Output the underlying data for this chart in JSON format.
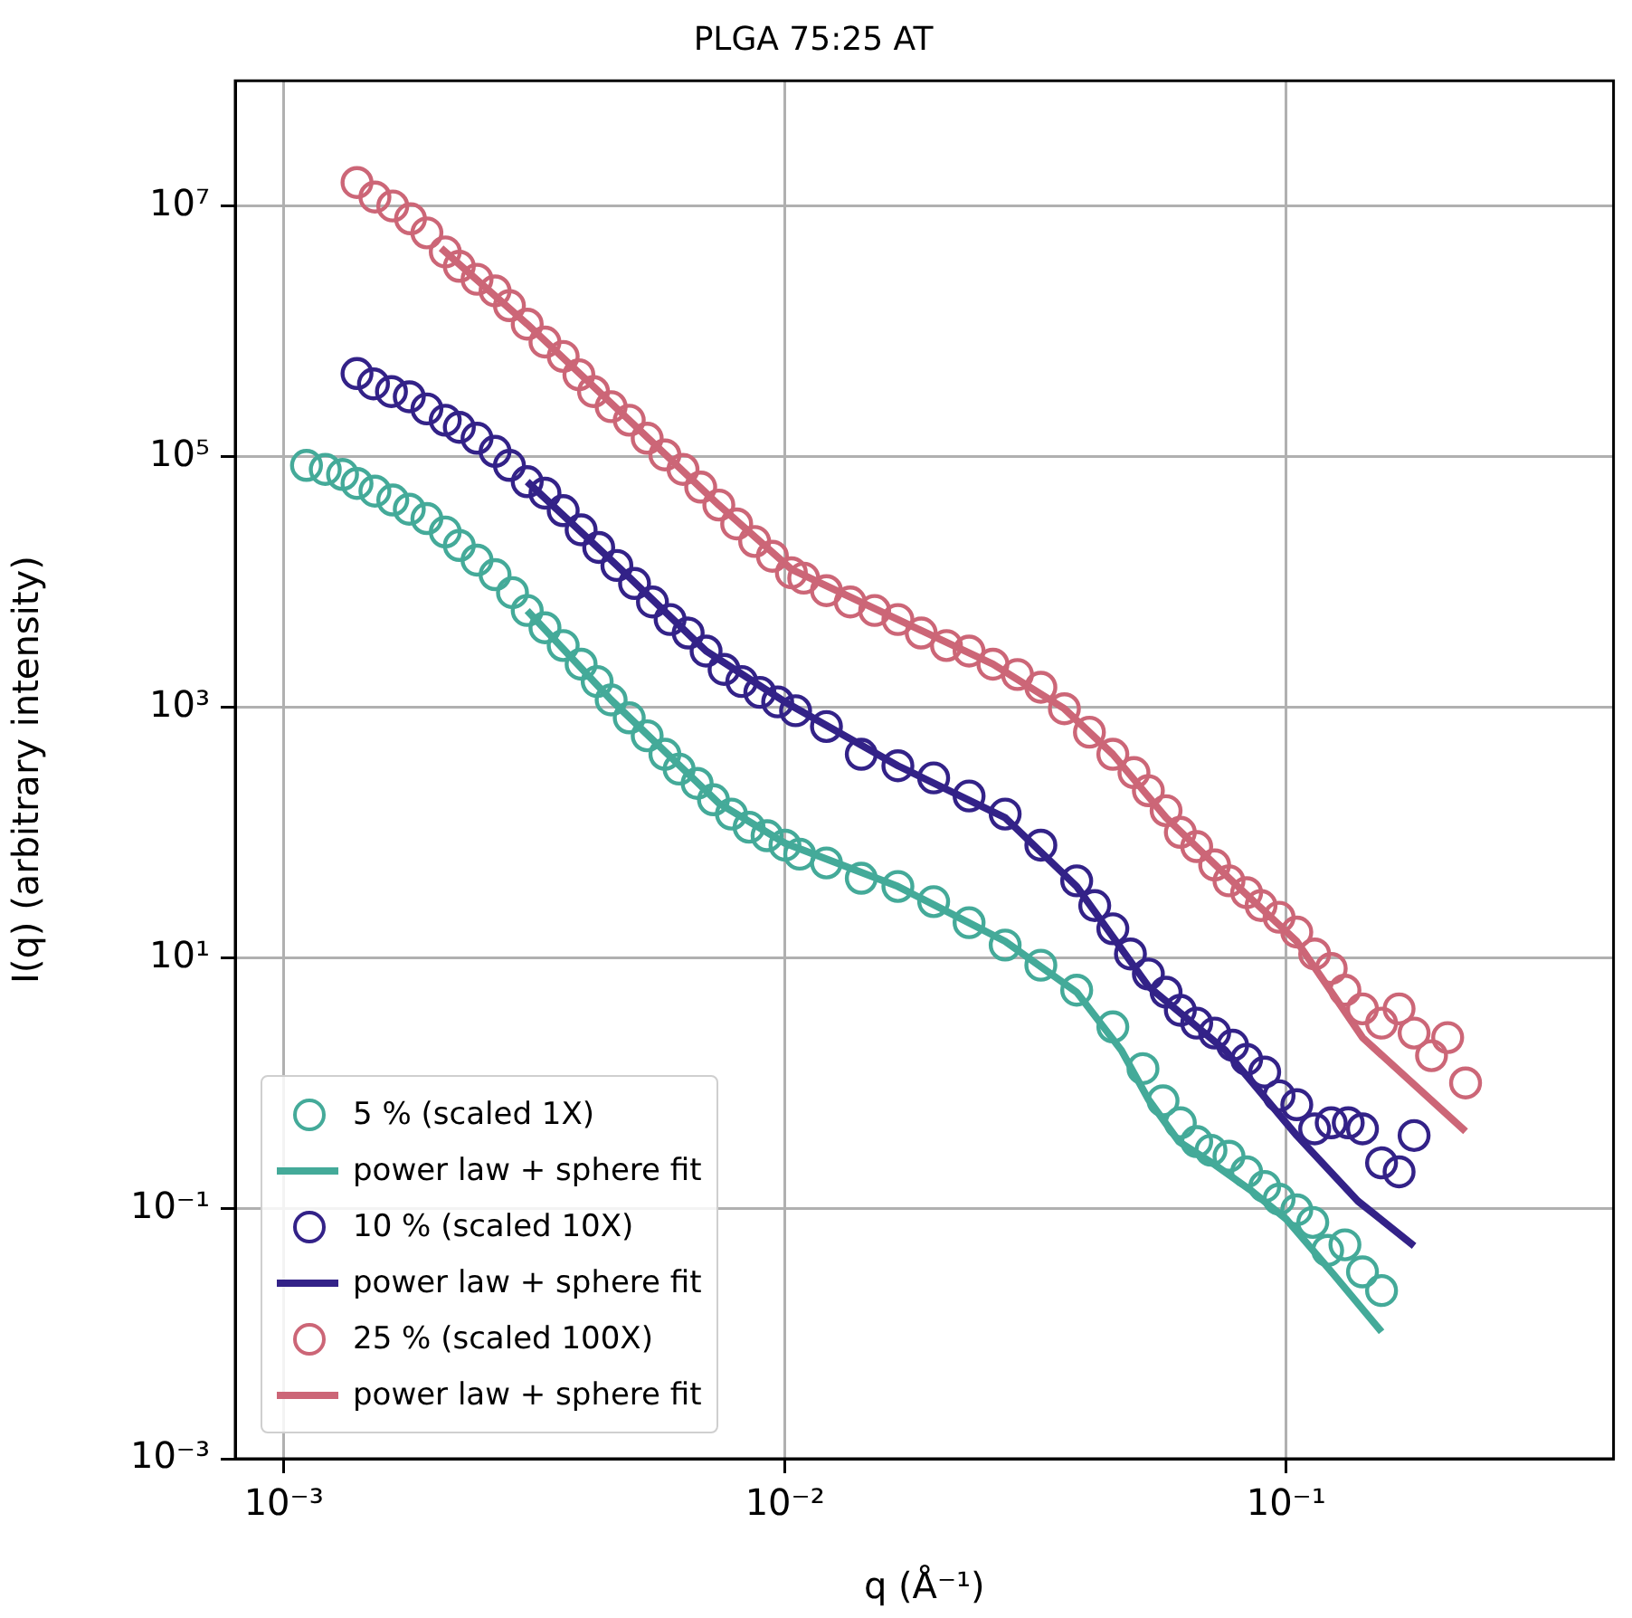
{
  "chart_data": {
    "type": "scatter",
    "title": "PLGA 75:25 AT",
    "xlabel": "q (Å⁻¹)",
    "ylabel": "I(q) (arbitrary intensity)",
    "log": "xy",
    "grid": true,
    "legend": "bottom left",
    "xlim": [
      0.0008,
      0.45
    ],
    "ylim": [
      0.001,
      100000000
    ],
    "xticks": [
      {
        "value": 0.001,
        "label": "10⁻³"
      },
      {
        "value": 0.01,
        "label": "10⁻²"
      },
      {
        "value": 0.1,
        "label": "10⁻¹"
      }
    ],
    "yticks": [
      {
        "value": 0.001,
        "label": "10⁻³"
      },
      {
        "value": 0.1,
        "label": "10⁻¹"
      },
      {
        "value": 10,
        "label": "10¹"
      },
      {
        "value": 1000,
        "label": "10³"
      },
      {
        "value": 100000,
        "label": "10⁵"
      },
      {
        "value": 10000000,
        "label": "10⁷"
      }
    ],
    "series": [
      {
        "name": "5 % (scaled 1X)",
        "type": "scatter",
        "marker": "circle",
        "color": "#44aa99",
        "x": [
          0.00111,
          0.00121,
          0.00131,
          0.0014,
          0.00152,
          0.00165,
          0.00178,
          0.00193,
          0.0021,
          0.00224,
          0.00243,
          0.00264,
          0.00286,
          0.00306,
          0.00332,
          0.00361,
          0.00392,
          0.00422,
          0.0045,
          0.00489,
          0.00531,
          0.00576,
          0.00615,
          0.00668,
          0.0072,
          0.00782,
          0.00848,
          0.00921,
          0.01,
          0.0107,
          0.0121,
          0.0142,
          0.0168,
          0.0198,
          0.0233,
          0.0275,
          0.0324,
          0.0382,
          0.0451,
          0.0518,
          0.0568,
          0.0615,
          0.0663,
          0.0708,
          0.0769,
          0.0834,
          0.0906,
          0.0968,
          0.105,
          0.113,
          0.121,
          0.131,
          0.142,
          0.155
        ],
        "values": [
          85000,
          79000,
          72000,
          61000,
          53000,
          45000,
          38000,
          32000,
          25000,
          19500,
          14900,
          11400,
          8200,
          5900,
          4300,
          3100,
          2200,
          1600,
          1140,
          820,
          590,
          420,
          320,
          246,
          182,
          140,
          110,
          94,
          79,
          67,
          57,
          43,
          37,
          28,
          19,
          12.6,
          8.7,
          5.5,
          2.8,
          1.3,
          0.72,
          0.48,
          0.34,
          0.29,
          0.26,
          0.195,
          0.149,
          0.118,
          0.097,
          0.077,
          0.046,
          0.051,
          0.031,
          0.022
        ]
      },
      {
        "name": "power law + sphere fit",
        "type": "line",
        "marker": "none",
        "color": "#44aa99",
        "x": [
          0.00306,
          0.0045,
          0.00738,
          0.01,
          0.0168,
          0.0275,
          0.0382,
          0.0469,
          0.0531,
          0.0611,
          0.072,
          0.0848,
          0.1,
          0.124,
          0.155
        ],
        "values": [
          5900,
          1140,
          171,
          82,
          37,
          13.5,
          5.3,
          1.82,
          0.74,
          0.34,
          0.223,
          0.14,
          0.082,
          0.03,
          0.0103
        ]
      },
      {
        "name": "10 % (scaled 10X)",
        "type": "scatter",
        "marker": "circle",
        "color": "#332288",
        "x": [
          0.0014,
          0.00151,
          0.00164,
          0.00178,
          0.00193,
          0.0021,
          0.00224,
          0.00243,
          0.00264,
          0.00282,
          0.00306,
          0.00332,
          0.00361,
          0.00392,
          0.00425,
          0.00462,
          0.00501,
          0.00544,
          0.0059,
          0.00641,
          0.00696,
          0.00756,
          0.0082,
          0.00891,
          0.00967,
          0.0105,
          0.0121,
          0.0142,
          0.0168,
          0.0198,
          0.0233,
          0.0275,
          0.0324,
          0.0382,
          0.0415,
          0.0451,
          0.0489,
          0.0531,
          0.0576,
          0.0615,
          0.0663,
          0.072,
          0.0782,
          0.0834,
          0.0906,
          0.0968,
          0.105,
          0.114,
          0.123,
          0.133,
          0.142,
          0.155,
          0.168,
          0.18
        ],
        "values": [
          460000,
          380000,
          330000,
          300000,
          240000,
          195000,
          171000,
          140000,
          110000,
          85000,
          63000,
          51000,
          37000,
          26000,
          18800,
          13500,
          9700,
          6900,
          5000,
          3900,
          2800,
          2000,
          1600,
          1310,
          1100,
          935,
          700,
          420,
          340,
          272,
          195,
          140,
          79,
          41,
          26,
          17,
          10.7,
          7.4,
          5.3,
          3.8,
          3.0,
          2.5,
          2.0,
          1.54,
          1.22,
          0.79,
          0.67,
          0.43,
          0.48,
          0.48,
          0.43,
          0.23,
          0.195,
          0.38
        ]
      },
      {
        "name": "power law + sphere fit",
        "type": "line",
        "marker": "none",
        "color": "#332288",
        "x": [
          0.00306,
          0.00462,
          0.00696,
          0.01,
          0.0168,
          0.0275,
          0.0382,
          0.0531,
          0.0756,
          0.105,
          0.139,
          0.18
        ],
        "values": [
          63000,
          13500,
          2800,
          1100,
          340,
          131,
          37,
          5.9,
          1.82,
          0.38,
          0.114,
          0.05
        ]
      },
      {
        "name": "25 % (scaled 100X)",
        "type": "scatter",
        "marker": "circle",
        "color": "#cc6677",
        "x": [
          0.0014,
          0.00152,
          0.00165,
          0.00179,
          0.00193,
          0.0021,
          0.00224,
          0.00243,
          0.00264,
          0.00282,
          0.00306,
          0.00332,
          0.00361,
          0.00388,
          0.00415,
          0.0045,
          0.00489,
          0.00531,
          0.00576,
          0.00626,
          0.00679,
          0.00738,
          0.00801,
          0.0087,
          0.00944,
          0.0103,
          0.0109,
          0.0121,
          0.0135,
          0.0151,
          0.0168,
          0.0187,
          0.021,
          0.0233,
          0.026,
          0.0291,
          0.0324,
          0.0361,
          0.0405,
          0.0451,
          0.0497,
          0.0531,
          0.0576,
          0.0615,
          0.0663,
          0.072,
          0.0769,
          0.0834,
          0.0891,
          0.0968,
          0.105,
          0.114,
          0.123,
          0.131,
          0.142,
          0.155,
          0.168,
          0.18,
          0.195,
          0.21,
          0.228
        ],
        "values": [
          15400000,
          11800000,
          10000000,
          7900000,
          6100000,
          4300000,
          3300000,
          2600000,
          2100000,
          1600000,
          1140000,
          820000,
          630000,
          450000,
          330000,
          250000,
          195000,
          140000,
          103000,
          79000,
          57000,
          41000,
          29000,
          21000,
          16000,
          11800,
          10700,
          8500,
          6900,
          5900,
          5000,
          3900,
          3100,
          2800,
          2200,
          1820,
          1440,
          970,
          630,
          420,
          300,
          215,
          149,
          100,
          77,
          55,
          41,
          33,
          26,
          21,
          16,
          10.7,
          8.2,
          5.5,
          3.9,
          3.0,
          3.9,
          2.5,
          1.65,
          2.3,
          1.0
        ]
      },
      {
        "name": "power law + sphere fit",
        "type": "line",
        "marker": "none",
        "color": "#cc6677",
        "x": [
          0.00206,
          0.00306,
          0.00489,
          0.00738,
          0.0103,
          0.0168,
          0.026,
          0.0361,
          0.0451,
          0.0576,
          0.0801,
          0.105,
          0.142,
          0.228
        ],
        "values": [
          4600000,
          1140000,
          195000,
          41000,
          12600,
          5000,
          2200,
          970,
          420,
          131,
          37,
          13.5,
          2.3,
          0.41
        ]
      }
    ]
  }
}
